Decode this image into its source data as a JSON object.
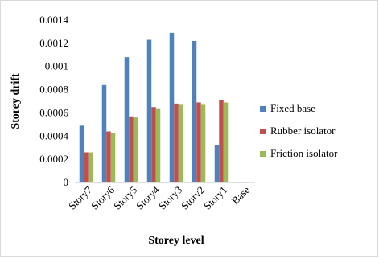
{
  "chart_data": {
    "type": "bar",
    "categories": [
      "Story7",
      "Story6",
      "Story5",
      "Story4",
      "Story3",
      "Story2",
      "Story1",
      "Base"
    ],
    "series": [
      {
        "name": "Fixed base",
        "color": "#4f81bd",
        "values": [
          0.00049,
          0.00084,
          0.00108,
          0.00123,
          0.00129,
          0.00122,
          0.00032,
          0
        ]
      },
      {
        "name": "Rubber isolator",
        "color": "#c0504d",
        "values": [
          0.00026,
          0.00044,
          0.00057,
          0.00065,
          0.00068,
          0.00069,
          0.00071,
          0
        ]
      },
      {
        "name": "Friction isolator",
        "color": "#9bbb59",
        "values": [
          0.00026,
          0.00043,
          0.00056,
          0.00064,
          0.00067,
          0.00067,
          0.00069,
          0
        ]
      }
    ],
    "xlabel": "Storey level",
    "ylabel": "Storey drift",
    "ylim": [
      0,
      0.0014
    ],
    "yticks": [
      "0",
      "0.0002",
      "0.0004",
      "0.0006",
      "0.0008",
      "0.001",
      "0.0012",
      "0.0014"
    ],
    "grid": false,
    "legend": "right"
  }
}
